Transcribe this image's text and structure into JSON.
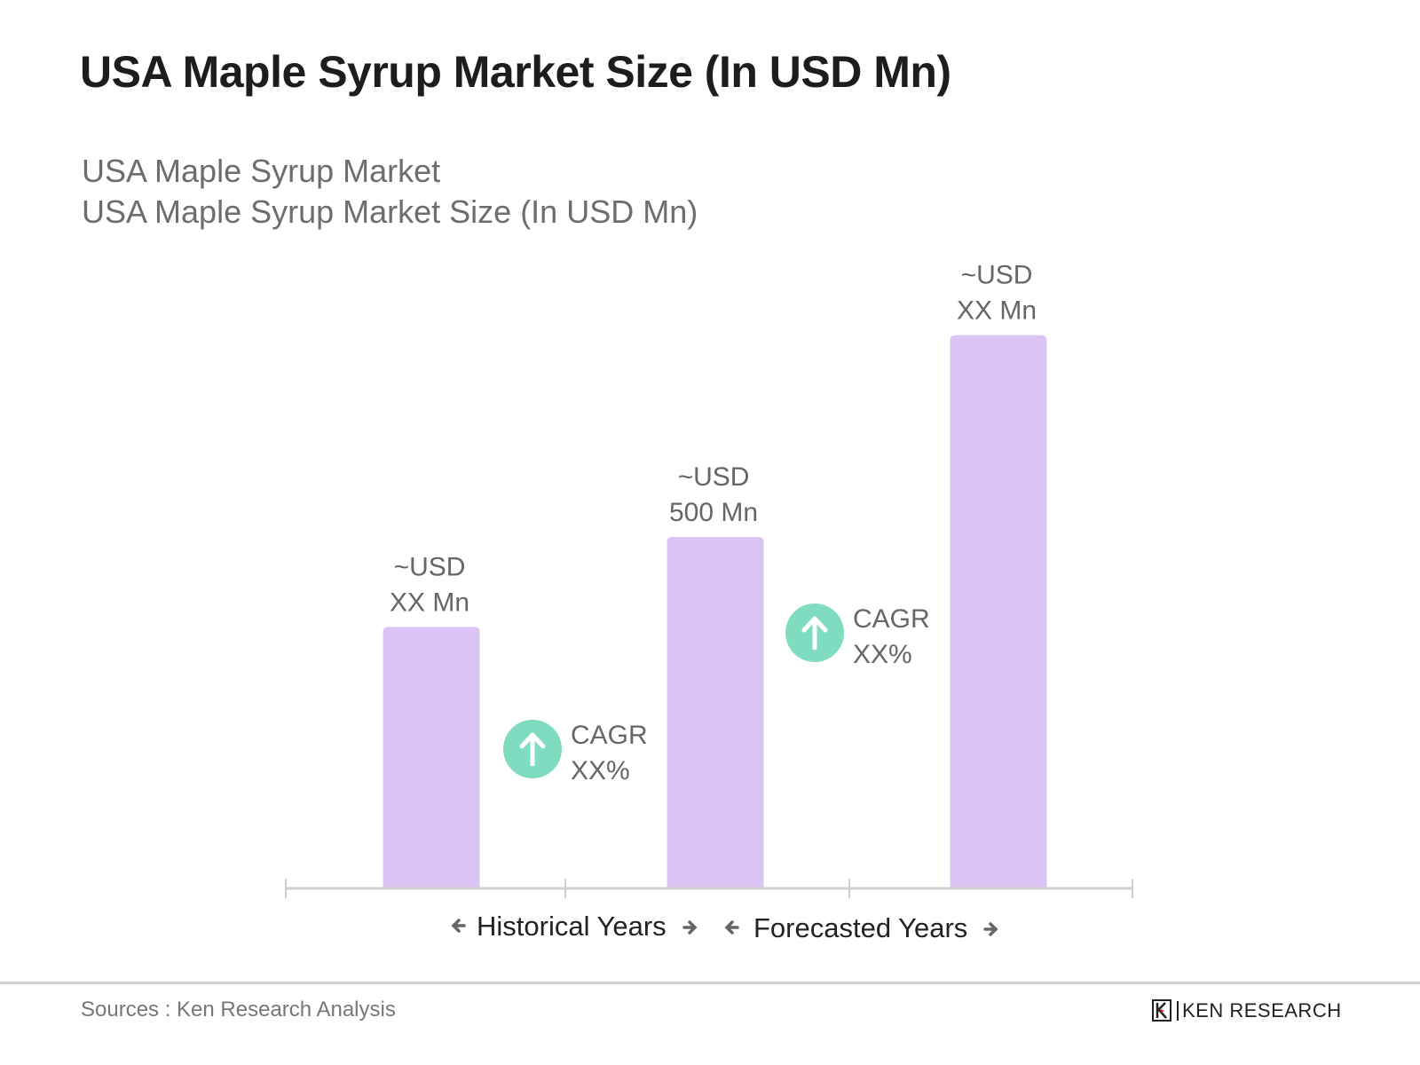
{
  "header": {
    "title": "USA Maple Syrup Market Size (In USD Mn)",
    "subtitle_1": "USA Maple Syrup Market",
    "subtitle_2": "USA Maple Syrup Market Size (In USD Mn)"
  },
  "chart_data": {
    "type": "bar",
    "title": "USA Maple Syrup Market Size (In USD Mn)",
    "categories": [
      "",
      "",
      ""
    ],
    "values": [
      372,
      500,
      787
    ],
    "data_labels": [
      [
        "~USD",
        "XX Mn"
      ],
      [
        "~USD",
        "500 Mn"
      ],
      [
        "~USD",
        "XX Mn"
      ]
    ],
    "bar_color": "#dcc3f5",
    "axis_color": "#cfcfcf",
    "grid": false,
    "annotations": [
      {
        "between": [
          0,
          1
        ],
        "lines": [
          "CAGR",
          "XX%"
        ],
        "icon": "arrow-up-circle-icon",
        "color": "#7fdcc0"
      },
      {
        "between": [
          1,
          2
        ],
        "lines": [
          "CAGR",
          "XX%"
        ],
        "icon": "arrow-up-circle-icon",
        "color": "#7fdcc0"
      }
    ],
    "period_labels": [
      "Historical Years",
      "Forecasted Years"
    ]
  },
  "footer": {
    "sources": "Sources : Ken Research Analysis",
    "logo_text": "KEN RESEARCH"
  }
}
